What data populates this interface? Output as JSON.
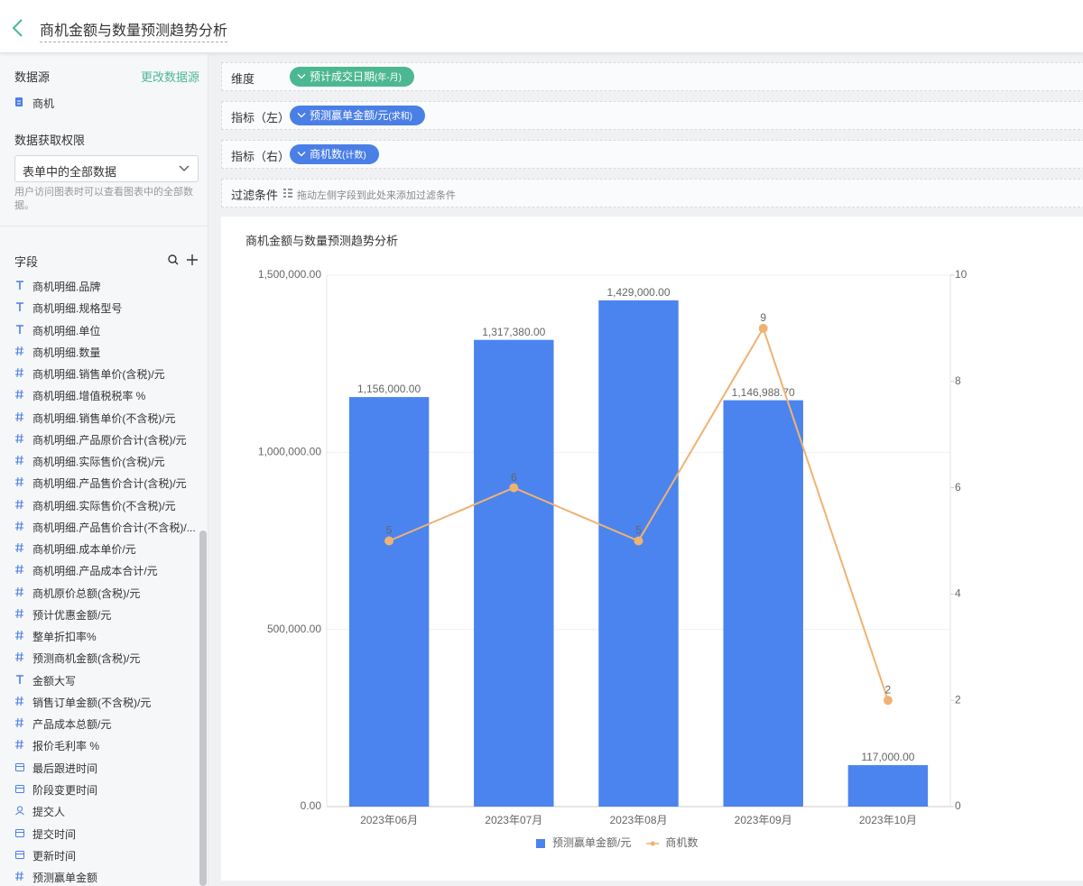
{
  "header": {
    "title": "商机金额与数量预测趋势分析"
  },
  "sidebar": {
    "datasource_label": "数据源",
    "change_datasource": "更改数据源",
    "datasource": "商机",
    "permission_label": "数据获取权限",
    "permission_value": "表单中的全部数据",
    "permission_help": "用户访问图表时可以查看图表中的全部数据。",
    "fields_label": "字段",
    "fields": [
      {
        "kind": "text",
        "name": "商机明细.品牌"
      },
      {
        "kind": "text",
        "name": "商机明细.规格型号"
      },
      {
        "kind": "text",
        "name": "商机明细.单位"
      },
      {
        "kind": "number",
        "name": "商机明细.数量"
      },
      {
        "kind": "number",
        "name": "商机明细.销售单价(含税)/元"
      },
      {
        "kind": "number",
        "name": "商机明细.增值税税率 %"
      },
      {
        "kind": "number",
        "name": "商机明细.销售单价(不含税)/元"
      },
      {
        "kind": "number",
        "name": "商机明细.产品原价合计(含税)/元"
      },
      {
        "kind": "number",
        "name": "商机明细.实际售价(含税)/元"
      },
      {
        "kind": "number",
        "name": "商机明细.产品售价合计(含税)/元"
      },
      {
        "kind": "number",
        "name": "商机明细.实际售价(不含税)/元"
      },
      {
        "kind": "number",
        "name": "商机明细.产品售价合计(不含税)/..."
      },
      {
        "kind": "number",
        "name": "商机明细.成本单价/元"
      },
      {
        "kind": "number",
        "name": "商机明细.产品成本合计/元"
      },
      {
        "kind": "number",
        "name": "商机原价总额(含税)/元"
      },
      {
        "kind": "number",
        "name": "预计优惠金额/元"
      },
      {
        "kind": "number",
        "name": "整单折扣率%"
      },
      {
        "kind": "number",
        "name": "预测商机金额(含税)/元"
      },
      {
        "kind": "text",
        "name": "金额大写"
      },
      {
        "kind": "number",
        "name": "销售订单金额(不含税)/元"
      },
      {
        "kind": "number",
        "name": "产品成本总额/元"
      },
      {
        "kind": "number",
        "name": "报价毛利率 %"
      },
      {
        "kind": "date",
        "name": "最后跟进时间"
      },
      {
        "kind": "date",
        "name": "阶段变更时间"
      },
      {
        "kind": "user",
        "name": "提交人"
      },
      {
        "kind": "date",
        "name": "提交时间"
      },
      {
        "kind": "date",
        "name": "更新时间"
      },
      {
        "kind": "number",
        "name": "预测赢单金额"
      }
    ]
  },
  "config": [
    {
      "label": "维度",
      "pill": "预计成交日期",
      "pill_suffix": "(年-月)",
      "color": "#4cb891"
    },
    {
      "label": "指标（左）",
      "pill": "预测赢单金额/元",
      "pill_suffix": "(求和)",
      "color": "#4a7fe6"
    },
    {
      "label": "指标（右）",
      "pill": "商机数",
      "pill_suffix": "(计数)",
      "color": "#4a7fe6"
    },
    {
      "label": "过滤条件",
      "hint": "拖动左侧字段到此处来添加过滤条件"
    }
  ],
  "chart_data": {
    "type": "bar+line",
    "title": "商机金额与数量预测趋势分析",
    "categories": [
      "2023年06月",
      "2023年07月",
      "2023年08月",
      "2023年09月",
      "2023年10月"
    ],
    "series": [
      {
        "name": "预测赢单金额/元",
        "type": "bar",
        "color": "#4b84ee",
        "values": [
          1156000,
          1317380,
          1429000,
          1146988.7,
          117000
        ],
        "value_labels": [
          "1,156,000.00",
          "1,317,380.00",
          "1,429,000.00",
          "1,146,988.70",
          "117,000.00"
        ]
      },
      {
        "name": "商机数",
        "type": "line",
        "axis": "y2",
        "color": "#f0b272",
        "values": [
          5,
          6,
          5,
          9,
          2
        ]
      }
    ],
    "ylim": [
      0,
      1500000
    ],
    "yticks": [
      {
        "value": 0,
        "label": "0.00"
      },
      {
        "value": 500000,
        "label": "500,000.00"
      },
      {
        "value": 1000000,
        "label": "1,000,000.00"
      },
      {
        "value": 1500000,
        "label": "1,500,000.00"
      }
    ],
    "y2lim": [
      0,
      10
    ],
    "y2ticks": [
      0,
      2,
      4,
      6,
      8,
      10
    ],
    "grid": true,
    "legend": "bottom"
  }
}
